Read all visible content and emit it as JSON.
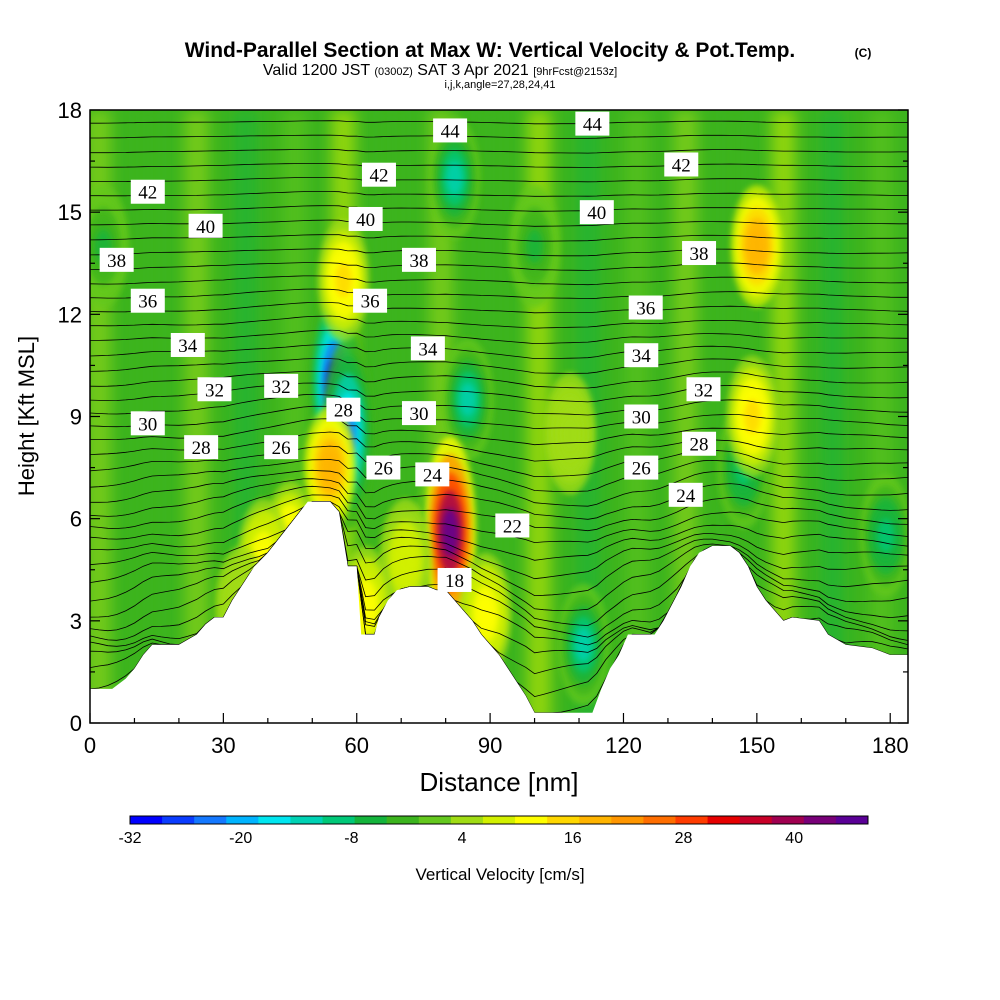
{
  "chart_data": {
    "type": "heatmap",
    "title": "Wind-Parallel Section at Max W: Vertical Velocity & Pot.Temp.",
    "title_mark": "(C)",
    "subtitle_main": "Valid 1200 JST",
    "subtitle_utc": "(0300Z)",
    "subtitle_date": "SAT 3 Apr 2021",
    "subtitle_fcst": "[9hrFcst@2153z]",
    "subtitle_index": "i,j,k,angle=27,28,24,41",
    "xlabel": "Distance [nm]",
    "ylabel": "Height [Kft MSL]",
    "xlim": [
      0,
      184
    ],
    "ylim": [
      0,
      18
    ],
    "xticks": [
      0,
      30,
      60,
      90,
      120,
      150,
      180
    ],
    "yticks": [
      0,
      3,
      6,
      9,
      12,
      15,
      18
    ],
    "colorbar": {
      "label": "Vertical Velocity [cm/s]",
      "tick_values": [
        -32,
        -20,
        -8,
        4,
        16,
        28,
        40
      ],
      "tick_labels": [
        "-32",
        "-20",
        "-8",
        "4",
        "16",
        "28",
        "40"
      ],
      "min": -32,
      "max": 48,
      "colors": [
        "#0000ff",
        "#0a3cff",
        "#1478ff",
        "#00b4ff",
        "#00e6f0",
        "#00d2b4",
        "#00c878",
        "#14b43c",
        "#3cb41e",
        "#64c81e",
        "#a0dc14",
        "#d2f000",
        "#ffff00",
        "#ffd700",
        "#ffb400",
        "#ff9600",
        "#ff6e00",
        "#ff3c00",
        "#e60000",
        "#c80028",
        "#a00050",
        "#780078",
        "#5a0096"
      ]
    },
    "terrain": [
      [
        0,
        1
      ],
      [
        5,
        1
      ],
      [
        8,
        1.3
      ],
      [
        10,
        1.6
      ],
      [
        12,
        2
      ],
      [
        14,
        2.3
      ],
      [
        20,
        2.3
      ],
      [
        24,
        2.6
      ],
      [
        26,
        2.9
      ],
      [
        28,
        3.1
      ],
      [
        30,
        3.1
      ],
      [
        32,
        3.6
      ],
      [
        34,
        4
      ],
      [
        37,
        4.6
      ],
      [
        40,
        5
      ],
      [
        43,
        5.5
      ],
      [
        46,
        6
      ],
      [
        49,
        6.5
      ],
      [
        54,
        6.5
      ],
      [
        56,
        6.2
      ],
      [
        58,
        4.6
      ],
      [
        60,
        4.6
      ],
      [
        61,
        2.6
      ],
      [
        64,
        2.6
      ],
      [
        65,
        3.1
      ],
      [
        67,
        3.6
      ],
      [
        69,
        3.9
      ],
      [
        72,
        4
      ],
      [
        76,
        4
      ],
      [
        78,
        3.9
      ],
      [
        80,
        3.9
      ],
      [
        82,
        3.6
      ],
      [
        84,
        3.3
      ],
      [
        86,
        3
      ],
      [
        88,
        2.6
      ],
      [
        90,
        2.3
      ],
      [
        92,
        2
      ],
      [
        94,
        1.6
      ],
      [
        96,
        1.2
      ],
      [
        98,
        0.8
      ],
      [
        100,
        0.3
      ],
      [
        113,
        0.3
      ],
      [
        115,
        1
      ],
      [
        117,
        1.6
      ],
      [
        119,
        2
      ],
      [
        121,
        2.6
      ],
      [
        127,
        2.6
      ],
      [
        129,
        3
      ],
      [
        131,
        3.5
      ],
      [
        133,
        4
      ],
      [
        135,
        4.6
      ],
      [
        137,
        5
      ],
      [
        140,
        5.2
      ],
      [
        144,
        5.2
      ],
      [
        146,
        5
      ],
      [
        148,
        4.6
      ],
      [
        150,
        4
      ],
      [
        152,
        3.6
      ],
      [
        154,
        3.3
      ],
      [
        156,
        3
      ],
      [
        158,
        3.1
      ],
      [
        164,
        3
      ],
      [
        166,
        2.6
      ],
      [
        170,
        2.3
      ],
      [
        176,
        2.2
      ],
      [
        178,
        2.1
      ],
      [
        180,
        2
      ],
      [
        184,
        2
      ]
    ],
    "updraft_cores": [
      {
        "x": 45,
        "y": 5.3,
        "w": 14
      },
      {
        "x": 39,
        "y": 4.8,
        "w": 13
      },
      {
        "x": 54,
        "y": 7.5,
        "w": 20
      },
      {
        "x": 81,
        "y": 5.6,
        "w": 46
      },
      {
        "x": 71,
        "y": 4.8,
        "w": 8
      },
      {
        "x": 89,
        "y": 3.2,
        "w": 12
      },
      {
        "x": 62,
        "y": 3.4,
        "w": 12
      },
      {
        "x": 57,
        "y": 13.0,
        "w": 14
      },
      {
        "x": 150,
        "y": 14.0,
        "w": 20
      },
      {
        "x": 149,
        "y": 9.0,
        "w": 14
      },
      {
        "x": 108,
        "y": 8.5,
        "w": 5
      },
      {
        "x": 34,
        "y": 3.4,
        "w": 6
      }
    ],
    "downdraft_cores": [
      {
        "x": 55,
        "y": 10,
        "w": -30
      },
      {
        "x": 58,
        "y": 8.5,
        "w": -22
      },
      {
        "x": 79,
        "y": 5.8,
        "w": -12
      },
      {
        "x": 85,
        "y": 9.5,
        "w": -14
      },
      {
        "x": 111,
        "y": 2.3,
        "w": -12
      },
      {
        "x": 147,
        "y": 7.5,
        "w": -10
      },
      {
        "x": 82,
        "y": 16,
        "w": -12
      },
      {
        "x": 3,
        "y": 14,
        "w": -6
      },
      {
        "x": 179,
        "y": 5.5,
        "w": -10
      },
      {
        "x": 100,
        "y": 14,
        "w": -5
      }
    ],
    "theta_labels": [
      {
        "text": "44",
        "x": 81,
        "y": 17.4
      },
      {
        "text": "44",
        "x": 113,
        "y": 17.6
      },
      {
        "text": "42",
        "x": 13,
        "y": 15.6
      },
      {
        "text": "42",
        "x": 65,
        "y": 16.1
      },
      {
        "text": "42",
        "x": 133,
        "y": 16.4
      },
      {
        "text": "40",
        "x": 26,
        "y": 14.6
      },
      {
        "text": "40",
        "x": 62,
        "y": 14.8
      },
      {
        "text": "40",
        "x": 114,
        "y": 15.0
      },
      {
        "text": "38",
        "x": 6,
        "y": 13.6
      },
      {
        "text": "38",
        "x": 74,
        "y": 13.6
      },
      {
        "text": "38",
        "x": 137,
        "y": 13.8
      },
      {
        "text": "36",
        "x": 13,
        "y": 12.4
      },
      {
        "text": "36",
        "x": 63,
        "y": 12.4
      },
      {
        "text": "36",
        "x": 125,
        "y": 12.2
      },
      {
        "text": "34",
        "x": 22,
        "y": 11.1
      },
      {
        "text": "34",
        "x": 76,
        "y": 11.0
      },
      {
        "text": "34",
        "x": 124,
        "y": 10.8
      },
      {
        "text": "32",
        "x": 28,
        "y": 9.8
      },
      {
        "text": "32",
        "x": 43,
        "y": 9.9
      },
      {
        "text": "32",
        "x": 138,
        "y": 9.8
      },
      {
        "text": "30",
        "x": 13,
        "y": 8.8
      },
      {
        "text": "30",
        "x": 74,
        "y": 9.1
      },
      {
        "text": "30",
        "x": 124,
        "y": 9.0
      },
      {
        "text": "28",
        "x": 57,
        "y": 9.2
      },
      {
        "text": "28",
        "x": 25,
        "y": 8.1
      },
      {
        "text": "28",
        "x": 137,
        "y": 8.2
      },
      {
        "text": "26",
        "x": 43,
        "y": 8.1
      },
      {
        "text": "26",
        "x": 66,
        "y": 7.5
      },
      {
        "text": "26",
        "x": 124,
        "y": 7.5
      },
      {
        "text": "24",
        "x": 77,
        "y": 7.3
      },
      {
        "text": "24",
        "x": 134,
        "y": 6.7
      },
      {
        "text": "22",
        "x": 95,
        "y": 5.8
      },
      {
        "text": "18",
        "x": 82,
        "y": 4.2
      }
    ]
  }
}
